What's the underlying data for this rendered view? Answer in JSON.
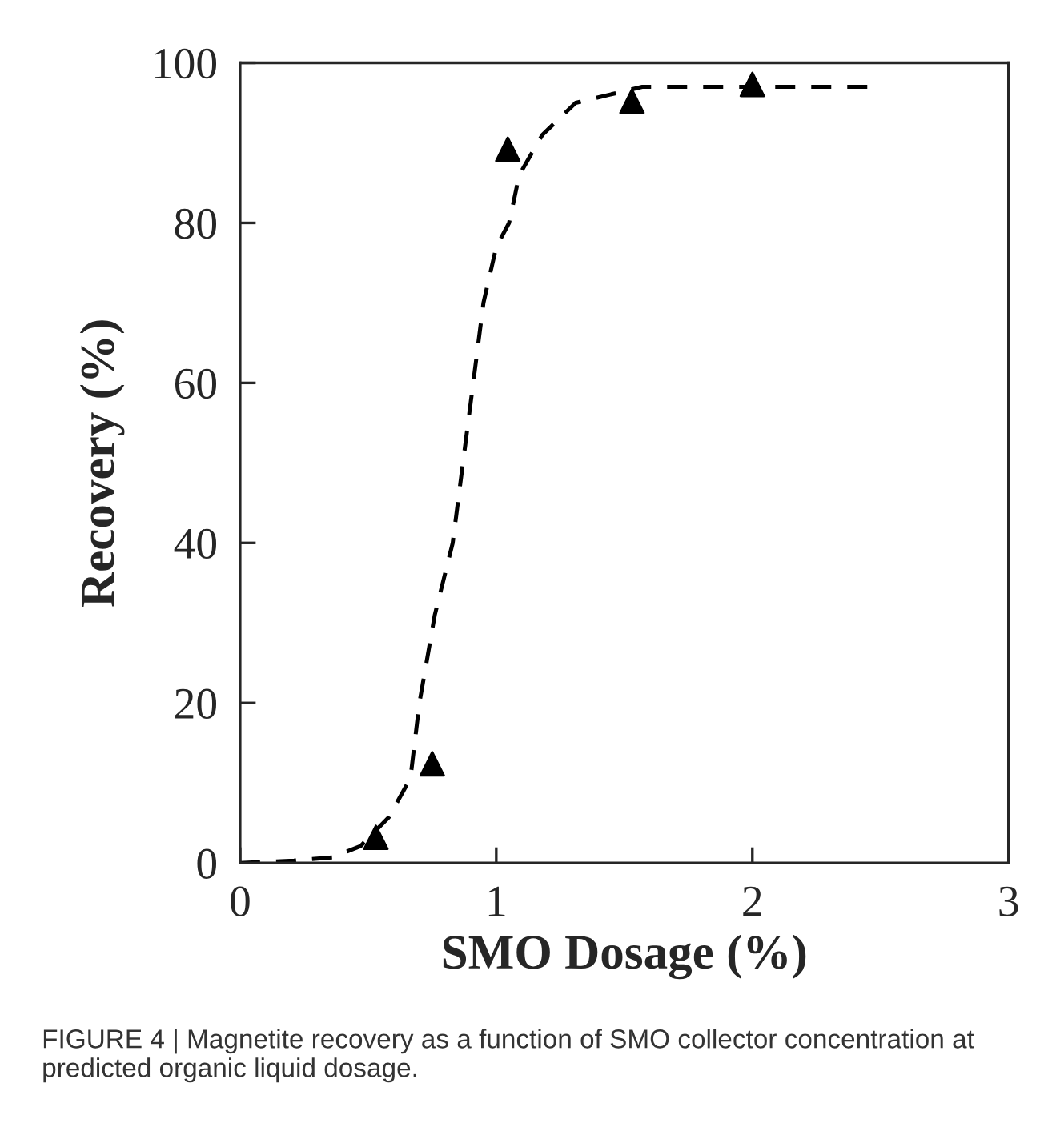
{
  "chart_data": {
    "type": "scatter",
    "xlabel": "SMO Dosage (%)",
    "ylabel": "Recovery (%)",
    "xlim": [
      0,
      3
    ],
    "xticks": [
      0,
      1,
      2,
      3
    ],
    "ylim": [
      0,
      100
    ],
    "yticks": [
      0,
      20,
      40,
      60,
      80,
      100
    ],
    "grid": false,
    "legend": false,
    "series": [
      {
        "color": "#000000",
        "marker": "triangle",
        "x": [
          0.53,
          0.75,
          1.045,
          1.53,
          2.0
        ],
        "values": [
          3.2,
          12.4,
          89.2,
          95.2,
          97.3
        ]
      },
      {
        "type": "line",
        "color": "#000000",
        "line_style": "dashed",
        "marker": "none",
        "x": [
          0,
          0.21,
          0.36,
          0.47,
          0.58,
          0.665,
          0.7,
          0.76,
          0.83,
          0.87,
          0.91,
          0.95,
          1.0,
          1.05,
          1.09,
          1.18,
          1.31,
          1.57,
          2.46
        ],
        "values": [
          0,
          0.3,
          0.7,
          2.1,
          5.7,
          10.6,
          20,
          31,
          40,
          50,
          60,
          70,
          77,
          80,
          86,
          91,
          95,
          97,
          97
        ]
      }
    ],
    "annotations": [
      "FIGURE 4 | Magnetite recovery as a function of SMO collector concentration at predicted organic liquid dosage."
    ]
  }
}
